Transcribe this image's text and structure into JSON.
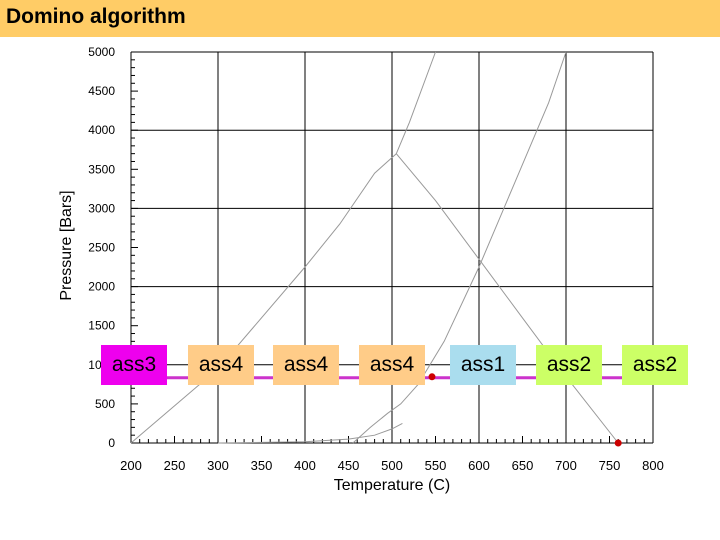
{
  "header": {
    "title": "Domino algorithm"
  },
  "colors": {
    "header_bg": "#ffcc66",
    "chain_line": "#cc33cc",
    "endpoint": "#cc0000",
    "grid": "#000000",
    "curve": "#999999"
  },
  "chart_data": {
    "type": "line",
    "title": "",
    "xlabel": "Temperature (C)",
    "ylabel": "Pressure [Bars]",
    "xlim": [
      200,
      800
    ],
    "ylim": [
      0,
      5000
    ],
    "xticks": [
      200,
      250,
      300,
      350,
      400,
      450,
      500,
      550,
      600,
      650,
      700,
      750,
      800
    ],
    "yticks": [
      0,
      500,
      1000,
      1500,
      2000,
      2500,
      3000,
      3500,
      4000,
      4500,
      5000
    ],
    "x_gridlines": [
      200,
      300,
      400,
      500,
      600,
      700,
      800
    ],
    "y_gridlines": [
      0,
      1000,
      2000,
      3000,
      4000,
      5000
    ],
    "grid": true,
    "series": [
      {
        "values": [
          [
            200,
            0
          ],
          [
            300,
            950
          ],
          [
            400,
            2250
          ],
          [
            440,
            2800
          ],
          [
            480,
            3450
          ],
          [
            505,
            3700
          ]
        ]
      },
      {
        "values": [
          [
            505,
            3700
          ],
          [
            550,
            3100
          ],
          [
            600,
            2350
          ],
          [
            650,
            1600
          ],
          [
            700,
            850
          ],
          [
            760,
            0
          ]
        ]
      },
      {
        "values": [
          [
            455,
            0
          ],
          [
            475,
            200
          ],
          [
            495,
            380
          ],
          [
            510,
            500
          ],
          [
            530,
            750
          ],
          [
            560,
            1300
          ],
          [
            600,
            2250
          ],
          [
            640,
            3300
          ],
          [
            680,
            4350
          ],
          [
            700,
            5000
          ]
        ]
      },
      {
        "values": [
          [
            505,
            3700
          ],
          [
            520,
            4100
          ],
          [
            550,
            5000
          ]
        ]
      },
      {
        "values": [
          [
            300,
            0
          ],
          [
            400,
            15
          ],
          [
            450,
            50
          ],
          [
            480,
            100
          ],
          [
            500,
            180
          ],
          [
            512,
            250
          ]
        ]
      }
    ],
    "points": [
      [
        760,
        0
      ],
      [
        550,
        1000
      ]
    ],
    "chain": {
      "y": 1000,
      "boxes": [
        {
          "label": "ass3",
          "color": "#ee00ee"
        },
        {
          "label": "ass4",
          "color": "#ffcc88"
        },
        {
          "label": "ass4",
          "color": "#ffcc88"
        },
        {
          "label": "ass4",
          "color": "#ffcc88"
        },
        {
          "label": "ass1",
          "color": "#aaddee"
        },
        {
          "label": "ass2",
          "color": "#ccff66"
        },
        {
          "label": "ass2",
          "color": "#ccff66"
        }
      ]
    }
  }
}
